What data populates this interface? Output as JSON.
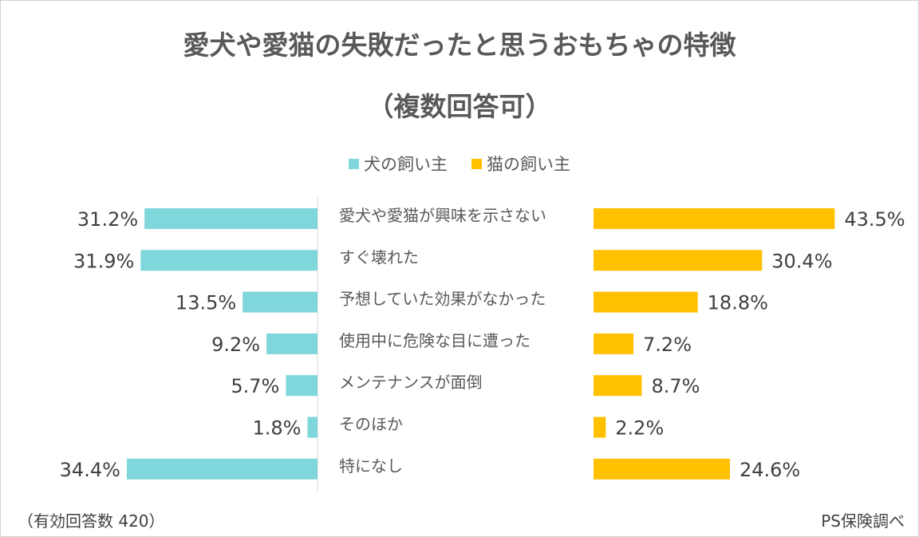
{
  "chart_data": {
    "type": "bar",
    "title": "愛犬や愛猫の失敗だったと思うおもちゃの特徴",
    "subtitle": "（複数回答可）",
    "categories": [
      "愛犬や愛猫が興味を示さない",
      "すぐ壊れた",
      "予想していた効果がなかった",
      "使用中に危険な目に遭った",
      "メンテナンスが面倒",
      "そのほか",
      "特になし"
    ],
    "series": [
      {
        "name": "犬の飼い主",
        "values": [
          31.2,
          31.9,
          13.5,
          9.2,
          5.7,
          1.8,
          34.4
        ],
        "labels": [
          "31.2%",
          "31.9%",
          "13.5%",
          "9.2%",
          "5.7%",
          "1.8%",
          "34.4%"
        ],
        "color": "#7fd6db",
        "direction": "left"
      },
      {
        "name": "猫の飼い主",
        "values": [
          43.5,
          30.4,
          18.8,
          7.2,
          8.7,
          2.2,
          24.6
        ],
        "labels": [
          "43.5%",
          "30.4%",
          "18.8%",
          "7.2%",
          "8.7%",
          "2.2%",
          "24.6%"
        ],
        "color": "#ffc000",
        "direction": "right"
      }
    ],
    "unit": "%",
    "grid": false,
    "legend_position": "top-center"
  },
  "notes": {
    "left": "（有効回答数 420）",
    "right": "PS保険調べ"
  }
}
